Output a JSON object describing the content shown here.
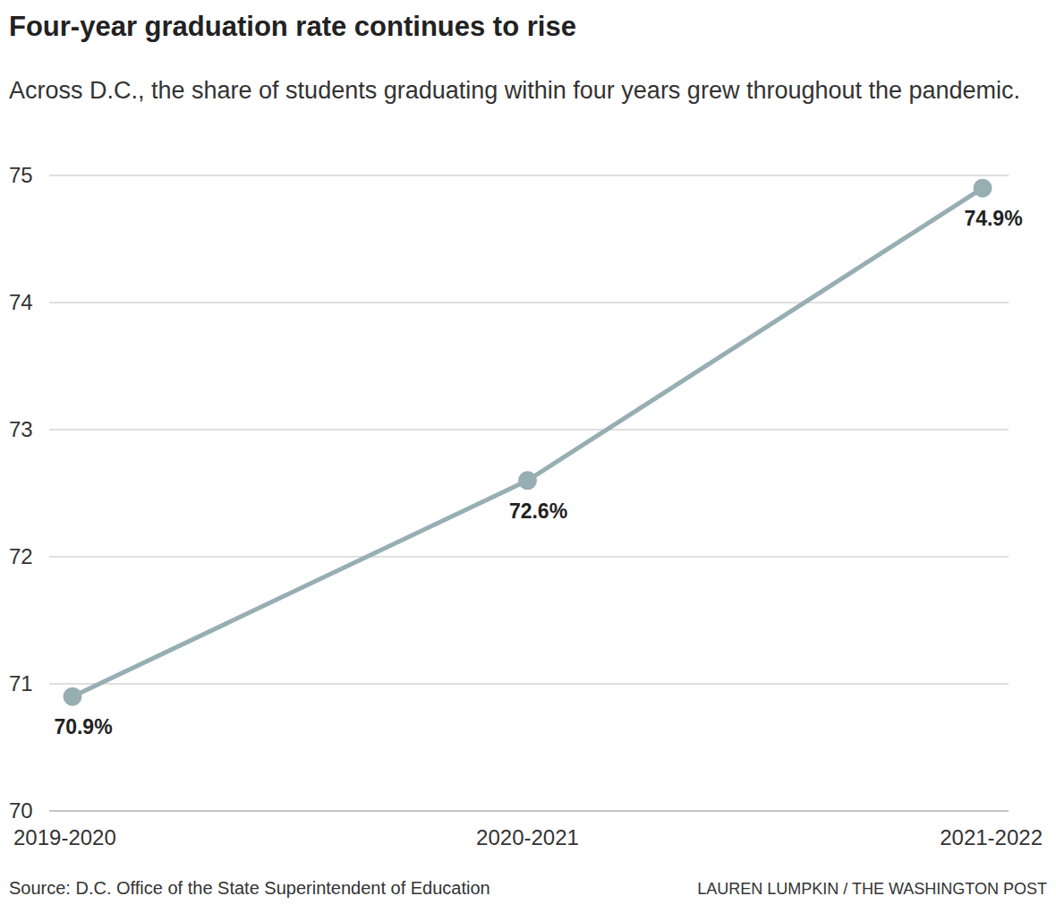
{
  "chart_data": {
    "type": "line",
    "title": "Four-year graduation rate continues to rise",
    "subtitle": "Across D.C., the share of students graduating within four years grew throughout the pandemic.",
    "source": "Source: D.C. Office of the State Superintendent of Education",
    "credit": "LAUREN LUMPKIN / THE WASHINGTON POST",
    "categories": [
      "2019-2020",
      "2020-2021",
      "2021-2022"
    ],
    "values": [
      70.9,
      72.6,
      74.9
    ],
    "value_labels": [
      "70.9%",
      "72.6%",
      "74.9%"
    ],
    "data_labels": true,
    "color": "#97aeb3",
    "ylim": [
      70,
      75
    ],
    "yticks": [
      70,
      71,
      72,
      73,
      74,
      75
    ],
    "grid": true
  }
}
